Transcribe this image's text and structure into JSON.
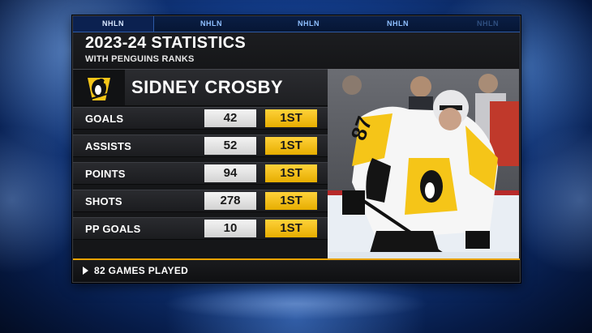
{
  "tabs": [
    "NHLN",
    "NHLN",
    "NHLN",
    "NHLN",
    "NHLN"
  ],
  "header": {
    "title": "2023-24 STATISTICS",
    "subtitle": "WITH PENGUINS RANKS"
  },
  "player": {
    "name": "SIDNEY CROSBY",
    "team_logo_icon": "penguins-logo-icon",
    "jersey_number": "87"
  },
  "stats": [
    {
      "label": "GOALS",
      "value": "42",
      "rank": "1ST"
    },
    {
      "label": "ASSISTS",
      "value": "52",
      "rank": "1ST"
    },
    {
      "label": "POINTS",
      "value": "94",
      "rank": "1ST"
    },
    {
      "label": "SHOTS",
      "value": "278",
      "rank": "1ST"
    },
    {
      "label": "PP GOALS",
      "value": "10",
      "rank": "1ST"
    }
  ],
  "footer": {
    "text": "82 GAMES PLAYED"
  },
  "colors": {
    "rank_gold": "#f5c518",
    "footer_accent": "#e8a200",
    "panel_dark": "#151618",
    "tab_blue": "#8fc0ff"
  }
}
